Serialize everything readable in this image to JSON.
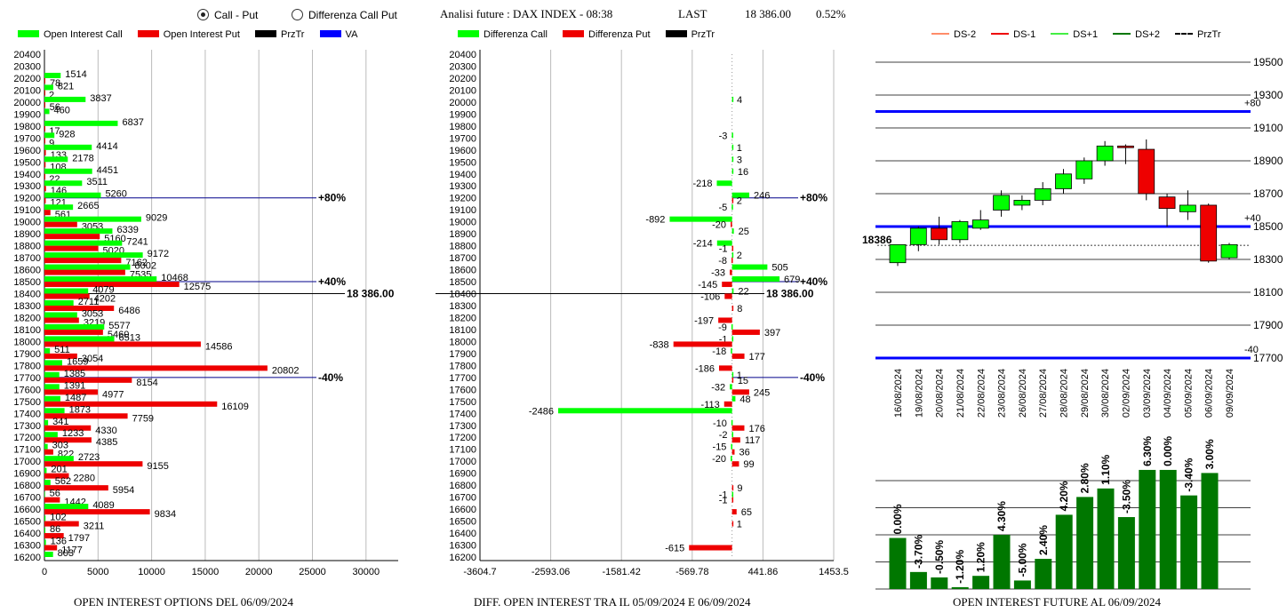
{
  "header": {
    "radio_options": [
      {
        "label": "Call - Put",
        "selected": true
      },
      {
        "label": "Differenza Call Put",
        "selected": false
      }
    ],
    "title": "Analisi future : DAX INDEX - 08:38",
    "last_label": "LAST",
    "last_value": "18 386.00",
    "change_pct": "0.52%"
  },
  "legends": {
    "oi": [
      {
        "label": "Open Interest Call",
        "color": "#00ff00",
        "kind": "box"
      },
      {
        "label": "Open Interest Put",
        "color": "#ee0000",
        "kind": "box"
      },
      {
        "label": "PrzTr",
        "color": "#000000",
        "kind": "box"
      },
      {
        "label": "VA",
        "color": "#0000ff",
        "kind": "box"
      }
    ],
    "diff": [
      {
        "label": "Differenza Call",
        "color": "#00ff00",
        "kind": "box"
      },
      {
        "label": "Differenza Put",
        "color": "#ee0000",
        "kind": "box"
      },
      {
        "label": "PrzTr",
        "color": "#000000",
        "kind": "box"
      }
    ],
    "candle": [
      {
        "label": "DS-2",
        "color": "#ff8c69",
        "kind": "line"
      },
      {
        "label": "DS-1",
        "color": "#ee0000",
        "kind": "line"
      },
      {
        "label": "DS+1",
        "color": "#44ee44",
        "kind": "line"
      },
      {
        "label": "DS+2",
        "color": "#007700",
        "kind": "line"
      },
      {
        "label": "PrzTr",
        "color": "#000000",
        "kind": "dash"
      }
    ]
  },
  "captions": {
    "oi": "OPEN INTEREST OPTIONS DEL 06/09/2024",
    "diff": "DIFF. OPEN INTEREST TRA IL 05/09/2024 E 06/09/2024",
    "future": "OPEN INTEREST FUTURE AL 06/09/2024"
  },
  "colors": {
    "call": "#00ff00",
    "put": "#ee0000",
    "va": "#0000ff",
    "future_bar": "#007700"
  },
  "chart_data": [
    {
      "type": "bar",
      "orientation": "horizontal",
      "strikes": [
        20400,
        20300,
        20200,
        20100,
        20000,
        19900,
        19800,
        19700,
        19600,
        19500,
        19400,
        19300,
        19200,
        19100,
        19000,
        18900,
        18800,
        18700,
        18600,
        18500,
        18400,
        18300,
        18200,
        18100,
        18000,
        17900,
        17800,
        17700,
        17600,
        17500,
        17400,
        17300,
        17200,
        17100,
        17000,
        16900,
        16800,
        16700,
        16600,
        16500,
        16400,
        16300,
        16200
      ],
      "series": [
        {
          "name": "Open Interest Call",
          "values": [
            0,
            0,
            1514,
            821,
            3837,
            460,
            6837,
            928,
            4414,
            2178,
            4451,
            3511,
            5260,
            2665,
            9029,
            6339,
            7241,
            9172,
            8002,
            10468,
            4079,
            2711,
            3053,
            5577,
            6513,
            511,
            1659,
            1385,
            1391,
            1487,
            1873,
            341,
            1233,
            303,
            2723,
            201,
            562,
            56,
            4089,
            102,
            86,
            136,
            803
          ]
        },
        {
          "name": "Open Interest Put",
          "values": [
            0,
            0,
            78,
            2,
            56,
            0,
            17,
            9,
            133,
            108,
            22,
            146,
            121,
            561,
            3053,
            5160,
            5020,
            7162,
            7535,
            12575,
            4202,
            6486,
            3219,
            5460,
            14586,
            3054,
            20802,
            8154,
            4977,
            16109,
            7759,
            4330,
            4385,
            822,
            9155,
            2280,
            5954,
            1442,
            9834,
            3211,
            1797,
            1177,
            0
          ]
        }
      ],
      "annotations": [
        {
          "strike": 19200,
          "label": "+80%"
        },
        {
          "strike": 18500,
          "label": "+40%"
        },
        {
          "strike": 17700,
          "label": "-40%"
        },
        {
          "strike": 18400,
          "label": "18 386.00"
        }
      ],
      "xlim": [
        0,
        33000
      ],
      "xticks": [
        "0",
        "5000",
        "10000",
        "15000",
        "20000",
        "25000",
        "30000"
      ]
    },
    {
      "type": "bar",
      "orientation": "horizontal",
      "strikes": [
        20400,
        20300,
        20200,
        20100,
        20000,
        19900,
        19800,
        19700,
        19600,
        19500,
        19400,
        19300,
        19200,
        19100,
        19000,
        18900,
        18800,
        18700,
        18600,
        18500,
        18400,
        18300,
        18200,
        18100,
        18000,
        17900,
        17800,
        17700,
        17600,
        17500,
        17400,
        17300,
        17200,
        17100,
        17000,
        16900,
        16800,
        16700,
        16600,
        16500,
        16400,
        16300,
        16200
      ],
      "call_diff": [
        null,
        null,
        null,
        null,
        4,
        null,
        null,
        -3,
        1,
        3,
        16,
        -218,
        246,
        -5,
        -892,
        25,
        -214,
        2,
        505,
        679,
        22,
        null,
        null,
        -9,
        -1,
        -18,
        null,
        1,
        -32,
        48,
        -2486,
        -10,
        -2,
        -15,
        -20,
        null,
        null,
        -1,
        null,
        null,
        null,
        null,
        null
      ],
      "put_diff": [
        null,
        null,
        null,
        null,
        null,
        null,
        null,
        null,
        null,
        null,
        null,
        null,
        2,
        null,
        -20,
        null,
        -1,
        -8,
        -33,
        -145,
        -106,
        8,
        -197,
        397,
        -838,
        177,
        -186,
        15,
        245,
        -113,
        null,
        176,
        117,
        36,
        99,
        null,
        9,
        -1,
        65,
        1,
        null,
        -615,
        null
      ],
      "annotations": [
        {
          "strike": 19200,
          "label": "+80%"
        },
        {
          "strike": 18500,
          "label": "+40%"
        },
        {
          "strike": 17700,
          "label": "-40%"
        },
        {
          "strike": 18400,
          "label": "18 386.00"
        }
      ],
      "xlim": [
        -3604.7,
        1453.5
      ],
      "xticks": [
        "-3604.7",
        "-2593.06",
        "-1581.42",
        "-569.78",
        "441.86",
        "1453.5"
      ]
    },
    {
      "type": "candlestick",
      "dates": [
        "16/08/2024",
        "19/08/2024",
        "20/08/2024",
        "21/08/2024",
        "22/08/2024",
        "23/08/2024",
        "26/08/2024",
        "27/08/2024",
        "28/08/2024",
        "29/08/2024",
        "30/08/2024",
        "02/09/2024",
        "03/09/2024",
        "04/09/2024",
        "05/09/2024",
        "06/09/2024",
        "09/09/2024"
      ],
      "ohlc": [
        [
          18280,
          18390,
          18260,
          18390
        ],
        [
          18390,
          18500,
          18350,
          18490
        ],
        [
          18490,
          18560,
          18390,
          18420
        ],
        [
          18420,
          18540,
          18400,
          18530
        ],
        [
          18490,
          18600,
          18480,
          18540
        ],
        [
          18600,
          18720,
          18560,
          18690
        ],
        [
          18630,
          18690,
          18600,
          18660
        ],
        [
          18660,
          18770,
          18630,
          18730
        ],
        [
          18730,
          18850,
          18700,
          18820
        ],
        [
          18790,
          18920,
          18760,
          18900
        ],
        [
          18900,
          19020,
          18870,
          18990
        ],
        [
          18990,
          19000,
          18880,
          18980
        ],
        [
          18970,
          19030,
          18660,
          18700
        ],
        [
          18680,
          18700,
          18500,
          18610
        ],
        [
          18590,
          18720,
          18540,
          18630
        ],
        [
          18630,
          18640,
          18280,
          18290
        ],
        [
          18310,
          18400,
          18300,
          18390
        ]
      ],
      "y_ticks": [
        "19500",
        "19300",
        "19100",
        "18900",
        "18700",
        "18500",
        "18300",
        "18100",
        "17900",
        "17700"
      ],
      "ylim": [
        17700,
        19500
      ],
      "levels": [
        {
          "label": "+80",
          "value": 19200
        },
        {
          "label": "+40",
          "value": 18500
        },
        {
          "label": "-40",
          "value": 17700
        }
      ],
      "last_label": "18386",
      "last_value": 18386
    },
    {
      "type": "bar",
      "values": [
        3.3,
        1.1,
        0.75,
        0.12,
        0.85,
        3.5,
        0.55,
        1.95,
        4.8,
        5.95,
        6.5,
        4.65,
        7.7,
        7.7,
        6.05,
        7.5
      ],
      "labels": [
        "0.00%",
        "-3.70%",
        "-0.50%",
        "-1.20%",
        "1.20%",
        "4.30%",
        "-5.00%",
        "2.40%",
        "4.20%",
        "2.80%",
        "1.10%",
        "-3.50%",
        "6.30%",
        "0.00%",
        "-3.40%",
        "3.00%"
      ],
      "ylim": [
        0,
        8.5
      ]
    }
  ]
}
